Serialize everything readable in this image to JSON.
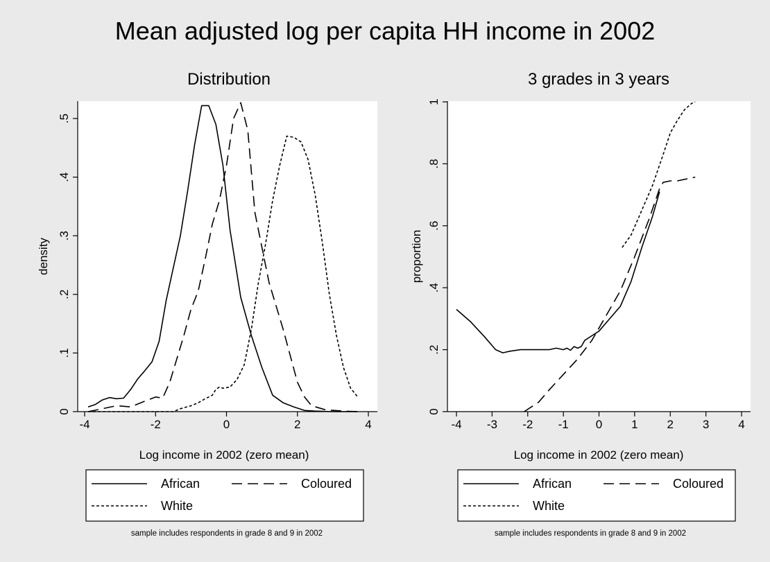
{
  "figure": {
    "title": "Mean adjusted log per capita HH income in 2002",
    "background": "#eaeaea",
    "plot_background": "#ffffff",
    "line_color": "#000000"
  },
  "chart_data": [
    {
      "type": "line",
      "title": "Distribution",
      "xlabel": "Log income in 2002 (zero mean)",
      "ylabel": "density",
      "xlim": [
        -4,
        4
      ],
      "ylim": [
        0,
        0.53
      ],
      "xticks": [
        -4,
        -2,
        0,
        2,
        4
      ],
      "xtick_labels": [
        "-4",
        "-2",
        "0",
        "2",
        "4"
      ],
      "yticks": [
        0,
        0.1,
        0.2,
        0.3,
        0.4,
        0.5
      ],
      "ytick_labels": [
        "0",
        ".1",
        ".2",
        ".3",
        ".4",
        ".5"
      ],
      "grid": true,
      "legend_placement": "bottom",
      "note": "sample includes respondents in grade 8 and 9 in 2002",
      "series": [
        {
          "name": "African",
          "style": "solid",
          "x": [
            -3.9,
            -3.7,
            -3.5,
            -3.3,
            -3.1,
            -2.9,
            -2.7,
            -2.5,
            -2.3,
            -2.1,
            -1.9,
            -1.7,
            -1.5,
            -1.3,
            -1.1,
            -0.9,
            -0.7,
            -0.6,
            -0.5,
            -0.3,
            -0.1,
            0.1,
            0.4,
            0.7,
            1.0,
            1.3,
            1.6,
            1.9,
            2.2,
            2.5,
            3.0,
            3.7
          ],
          "y": [
            0.008,
            0.012,
            0.02,
            0.024,
            0.022,
            0.023,
            0.038,
            0.056,
            0.07,
            0.085,
            0.12,
            0.19,
            0.245,
            0.3,
            0.375,
            0.455,
            0.522,
            0.522,
            0.522,
            0.49,
            0.42,
            0.31,
            0.195,
            0.13,
            0.075,
            0.028,
            0.015,
            0.008,
            0.002,
            0.001,
            0.0,
            0.0
          ]
        },
        {
          "name": "Coloured",
          "style": "dashed",
          "x": [
            -3.9,
            -3.5,
            -3.1,
            -2.7,
            -2.3,
            -2.0,
            -1.8,
            -1.6,
            -1.4,
            -1.2,
            -1.0,
            -0.8,
            -0.6,
            -0.4,
            -0.2,
            0.0,
            0.2,
            0.4,
            0.6,
            0.8,
            1.0,
            1.2,
            1.4,
            1.6,
            1.8,
            2.0,
            2.2,
            2.4,
            2.8,
            3.3,
            3.7
          ],
          "y": [
            0.0,
            0.005,
            0.01,
            0.008,
            0.018,
            0.025,
            0.023,
            0.05,
            0.09,
            0.13,
            0.175,
            0.205,
            0.26,
            0.32,
            0.36,
            0.42,
            0.5,
            0.527,
            0.48,
            0.34,
            0.28,
            0.22,
            0.18,
            0.14,
            0.095,
            0.05,
            0.025,
            0.01,
            0.003,
            0.001,
            0.0
          ]
        },
        {
          "name": "White",
          "style": "dotted",
          "x": [
            -3.9,
            -3.0,
            -2.0,
            -1.5,
            -1.3,
            -1.0,
            -0.8,
            -0.6,
            -0.4,
            -0.3,
            -0.2,
            -0.1,
            0.1,
            0.3,
            0.5,
            0.7,
            0.9,
            1.1,
            1.3,
            1.5,
            1.7,
            1.9,
            2.1,
            2.3,
            2.5,
            2.7,
            2.9,
            3.1,
            3.3,
            3.5,
            3.7
          ],
          "y": [
            0.0,
            0.0,
            0.0,
            0.0,
            0.005,
            0.01,
            0.015,
            0.022,
            0.028,
            0.038,
            0.042,
            0.04,
            0.042,
            0.055,
            0.08,
            0.14,
            0.22,
            0.285,
            0.36,
            0.42,
            0.47,
            0.468,
            0.46,
            0.43,
            0.37,
            0.29,
            0.2,
            0.13,
            0.075,
            0.04,
            0.025
          ]
        }
      ]
    },
    {
      "type": "line",
      "title": "3 grades in 3 years",
      "xlabel": "Log income in 2002 (zero mean)",
      "ylabel": "proportion",
      "xlim": [
        -4,
        4
      ],
      "ylim": [
        0,
        1
      ],
      "xticks": [
        -4,
        -3,
        -2,
        -1,
        0,
        1,
        2,
        3,
        4
      ],
      "xtick_labels": [
        "-4",
        "-3",
        "-2",
        "-1",
        "0",
        "1",
        "2",
        "3",
        "4"
      ],
      "yticks": [
        0,
        0.2,
        0.4,
        0.6,
        0.8,
        1
      ],
      "ytick_labels": [
        "0",
        ".2",
        ".4",
        ".6",
        ".8",
        "1"
      ],
      "grid": true,
      "legend_placement": "bottom",
      "note": "sample includes respondents in grade 8 and 9 in 2002",
      "series": [
        {
          "name": "African",
          "style": "solid",
          "x": [
            -4.0,
            -3.6,
            -3.2,
            -2.9,
            -2.7,
            -2.5,
            -2.2,
            -1.9,
            -1.6,
            -1.4,
            -1.2,
            -1.0,
            -0.9,
            -0.8,
            -0.7,
            -0.6,
            -0.5,
            -0.4,
            -0.2,
            0.0,
            0.3,
            0.6,
            0.9,
            1.2,
            1.5,
            1.7
          ],
          "y": [
            0.33,
            0.29,
            0.24,
            0.2,
            0.19,
            0.195,
            0.2,
            0.2,
            0.2,
            0.2,
            0.205,
            0.2,
            0.205,
            0.198,
            0.21,
            0.205,
            0.21,
            0.23,
            0.245,
            0.26,
            0.3,
            0.34,
            0.42,
            0.53,
            0.63,
            0.71
          ]
        },
        {
          "name": "Coloured",
          "style": "dashed",
          "x": [
            -2.1,
            -1.7,
            -1.4,
            -1.0,
            -0.6,
            -0.2,
            0.2,
            0.6,
            1.0,
            1.4,
            1.7,
            1.8,
            2.0,
            2.2,
            2.7
          ],
          "y": [
            0.0,
            0.03,
            0.07,
            0.12,
            0.17,
            0.23,
            0.31,
            0.39,
            0.5,
            0.62,
            0.72,
            0.74,
            0.745,
            0.745,
            0.757
          ]
        },
        {
          "name": "White",
          "style": "dotted",
          "x": [
            0.65,
            0.9,
            1.2,
            1.5,
            1.8,
            2.0,
            2.2,
            2.4,
            2.6,
            2.7
          ],
          "y": [
            0.53,
            0.57,
            0.65,
            0.73,
            0.83,
            0.9,
            0.94,
            0.975,
            0.995,
            1.0
          ]
        }
      ]
    }
  ]
}
